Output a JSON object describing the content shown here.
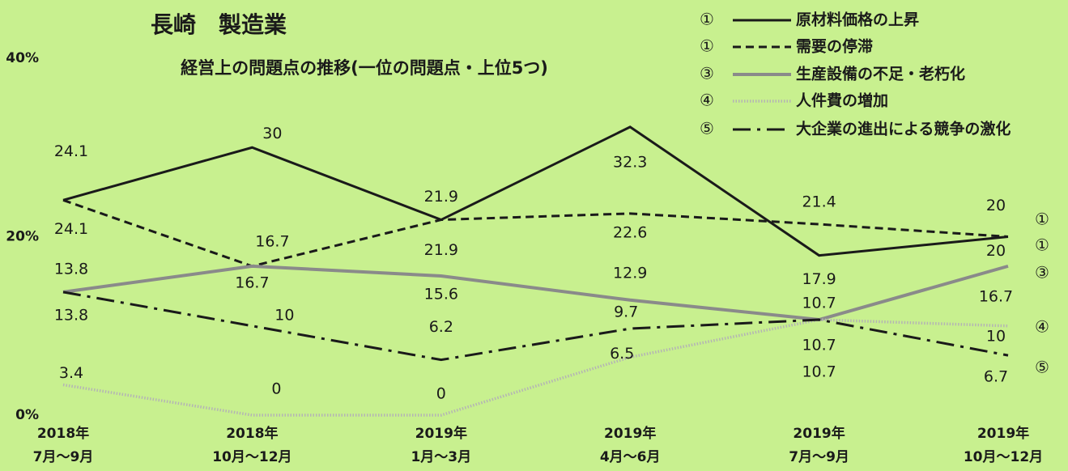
{
  "chart_data": {
    "type": "line",
    "title": "長崎　製造業",
    "subtitle": "経営上の問題点の推移(一位の問題点・上位5つ)",
    "categories": [
      "2018年\n7月～9月",
      "2018年\n10月～12月",
      "2019年\n1月～3月",
      "2019年\n4月～6月",
      "2019年\n7月～9月",
      "2019年\n10月～12月"
    ],
    "ylim": [
      0,
      40
    ],
    "yticks": [
      {
        "value": 0,
        "label": "0%"
      },
      {
        "value": 20,
        "label": "20%"
      },
      {
        "value": 40,
        "label": "40%"
      }
    ],
    "grid": false,
    "legend": "top-right",
    "series": [
      {
        "name": "原材料価格の上昇",
        "marker": "①",
        "color": "#1a1a1a",
        "linestyle": "solid",
        "values": [
          24.1,
          30,
          21.9,
          32.3,
          17.9,
          20
        ]
      },
      {
        "name": "需要の停滞",
        "marker": "①",
        "color": "#1a1a1a",
        "linestyle": "dashed",
        "values": [
          24.1,
          16.7,
          21.9,
          22.6,
          21.4,
          20
        ]
      },
      {
        "name": "生産設備の不足・老朽化",
        "marker": "③",
        "color": "#8a8a8a",
        "linestyle": "solid",
        "values": [
          13.8,
          16.7,
          15.6,
          12.9,
          10.7,
          16.7
        ]
      },
      {
        "name": "人件費の増加",
        "marker": "④",
        "color": "#b4b4b4",
        "linestyle": "dotted",
        "values": [
          3.4,
          0,
          0,
          6.5,
          10.7,
          10
        ]
      },
      {
        "name": "大企業の進出による競争の激化",
        "marker": "⑤",
        "color": "#1a1a1a",
        "linestyle": "dashdot",
        "values": [
          13.8,
          10,
          6.2,
          9.7,
          10.7,
          6.7
        ]
      }
    ]
  }
}
